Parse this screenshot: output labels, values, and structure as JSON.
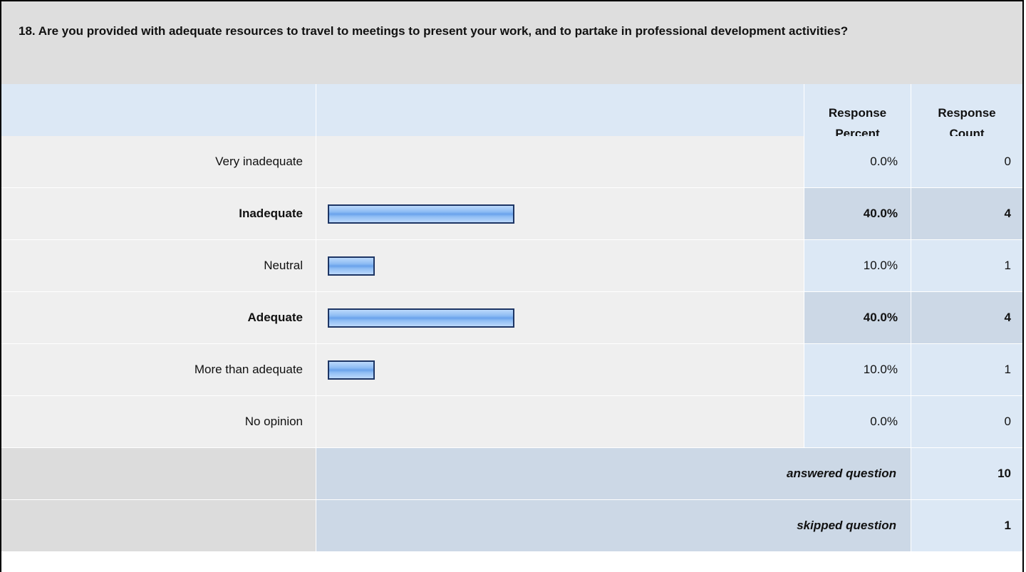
{
  "question": "18. Are you provided with adequate resources to travel to meetings to present your work, and to partake in professional development activities?",
  "table": {
    "header": [
      "Response Percent",
      "Response Count"
    ],
    "rows": [
      {
        "label": "Very inadequate",
        "percent": 0,
        "percent_label": "0.0%",
        "count": 0,
        "bold": false
      },
      {
        "label": "Inadequate",
        "percent": 40,
        "percent_label": "40.0%",
        "count": 4,
        "bold": true
      },
      {
        "label": "Neutral",
        "percent": 10,
        "percent_label": "10.0%",
        "count": 1,
        "bold": false
      },
      {
        "label": "Adequate",
        "percent": 40,
        "percent_label": "40.0%",
        "count": 4,
        "bold": true
      },
      {
        "label": "More than adequate",
        "percent": 10,
        "percent_label": "10.0%",
        "count": 1,
        "bold": false
      },
      {
        "label": "No opinion",
        "percent": 0,
        "percent_label": "0.0%",
        "count": 0,
        "bold": false
      }
    ],
    "summary": [
      {
        "label": "answered question",
        "value": 10
      },
      {
        "label": "skipped question",
        "value": 1
      }
    ]
  }
}
